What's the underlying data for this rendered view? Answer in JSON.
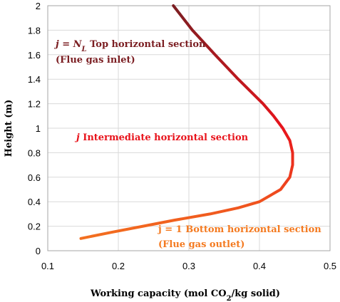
{
  "chart_data": {
    "type": "line",
    "x_label": [
      {
        "text": "Working capacity (mol CO"
      },
      {
        "text": "2",
        "sub": true
      },
      {
        "text": "/kg solid)"
      }
    ],
    "y_label": "Height (m)",
    "xlim": [
      0.1,
      0.5
    ],
    "xticks": [
      0.1,
      0.2,
      0.3,
      0.4,
      0.5
    ],
    "ylim": [
      0,
      2
    ],
    "yticks": [
      0,
      0.2,
      0.4,
      0.6,
      0.8,
      1,
      1.2,
      1.4,
      1.6,
      1.8,
      2
    ],
    "grid": true,
    "series": [
      {
        "colors": [
          "#f47a20",
          "#e8141c",
          "#7b1e22"
        ],
        "x": [
          0.147,
          0.19,
          0.235,
          0.28,
          0.33,
          0.37,
          0.4,
          0.43,
          0.443,
          0.447,
          0.447,
          0.443,
          0.433,
          0.42,
          0.405,
          0.37,
          0.337,
          0.305,
          0.278
        ],
        "values": [
          0.1,
          0.15,
          0.2,
          0.25,
          0.3,
          0.35,
          0.4,
          0.5,
          0.6,
          0.7,
          0.8,
          0.9,
          1.0,
          1.1,
          1.2,
          1.4,
          1.6,
          1.8,
          2.0
        ]
      }
    ],
    "annotations": [
      {
        "color": "#7b1e22",
        "lines": [
          [
            {
              "text": "j = N",
              "italic": true
            },
            {
              "text": "L",
              "italic": true,
              "sub": true
            },
            {
              "text": " Top horizontal section"
            }
          ],
          [
            {
              "text": "(Flue gas inlet)"
            }
          ]
        ]
      },
      {
        "color": "#e8141c",
        "lines": [
          [
            {
              "text": "j",
              "italic": true
            },
            {
              "text": "  Intermediate horizontal section"
            }
          ]
        ]
      },
      {
        "color": "#f47a20",
        "lines": [
          [
            {
              "text": "j = 1  Bottom horizontal section"
            }
          ],
          [
            {
              "text": "(Flue gas outlet)"
            }
          ]
        ]
      }
    ]
  }
}
